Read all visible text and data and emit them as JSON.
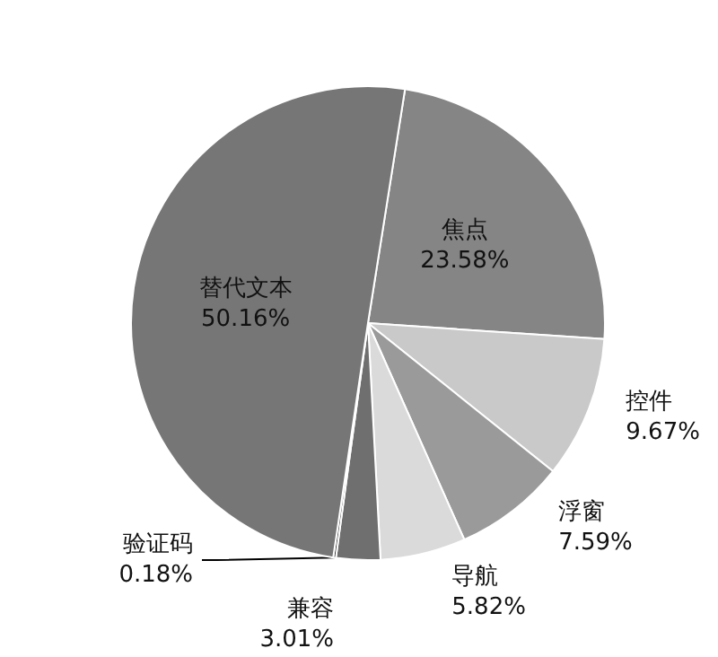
{
  "chart_data": {
    "type": "pie",
    "categories": [
      "焦点",
      "控件",
      "浮窗",
      "导航",
      "兼容",
      "验证码",
      "替代文本"
    ],
    "values": [
      23.58,
      9.67,
      7.59,
      5.82,
      3.01,
      0.18,
      50.16
    ],
    "value_labels": [
      "23.58%",
      "9.67%",
      "7.59%",
      "5.82%",
      "3.01%",
      "0.18%",
      "50.16%"
    ],
    "colors": [
      "#858585",
      "#c9c9c9",
      "#9a9a9a",
      "#dadada",
      "#6f6f6f",
      "#2a2a2a",
      "#767676"
    ],
    "legend": false
  }
}
